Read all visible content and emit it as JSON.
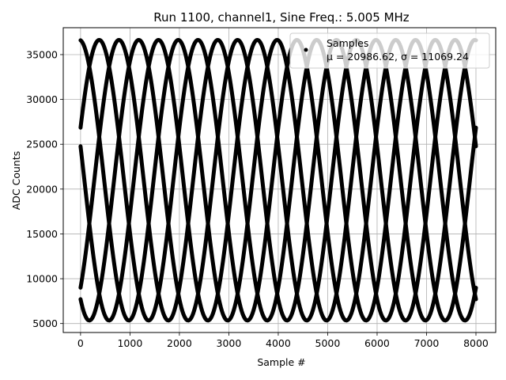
{
  "chart_data": {
    "type": "scatter",
    "title": "Run 1100, channel1, Sine Freq.: 5.005 MHz",
    "xlabel": "Sample #",
    "ylabel": "ADC Counts",
    "xlim": [
      -350,
      8400
    ],
    "ylim": [
      4000,
      38000
    ],
    "xticks": [
      0,
      1000,
      2000,
      3000,
      4000,
      5000,
      6000,
      7000,
      8000
    ],
    "yticks": [
      5000,
      10000,
      15000,
      20000,
      25000,
      30000,
      35000
    ],
    "grid": true,
    "legend": {
      "placement": "top-right",
      "entries": [
        "Samples",
        "μ = 20986.62, σ = 11069.24"
      ]
    },
    "series": [
      {
        "name": "Samples",
        "color": "#000000",
        "marker": "dot",
        "mean": 20986.62,
        "sigma": 11069.24,
        "amplitude": 15650,
        "sine_period_samples": 2000,
        "phases_deg": [
          -50,
          22,
          94,
          166,
          238
        ],
        "x_range": [
          0,
          8000
        ]
      }
    ]
  }
}
